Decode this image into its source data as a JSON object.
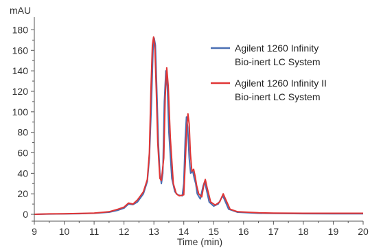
{
  "chart_data": {
    "type": "line",
    "xlabel": "Time (min)",
    "ylabel": "mAU",
    "xlim": [
      9,
      20
    ],
    "ylim": [
      -4,
      187
    ],
    "x_ticks": [
      9,
      10,
      11,
      12,
      13,
      14,
      15,
      16,
      17,
      18,
      19,
      20
    ],
    "y_ticks": [
      0,
      20,
      40,
      60,
      80,
      100,
      120,
      140,
      160,
      180
    ],
    "grid": false,
    "legend_position": "top-right",
    "series": [
      {
        "name": "Agilent 1260 Infinity\nBio-inert LC System",
        "color": "#4a6fb3",
        "points": [
          [
            9.0,
            0.0
          ],
          [
            9.5,
            0.3
          ],
          [
            10.0,
            0.4
          ],
          [
            10.5,
            0.6
          ],
          [
            11.0,
            1.0
          ],
          [
            11.5,
            2.0
          ],
          [
            11.8,
            4.0
          ],
          [
            12.0,
            6.0
          ],
          [
            12.15,
            10.0
          ],
          [
            12.3,
            9.5
          ],
          [
            12.45,
            12.0
          ],
          [
            12.55,
            16.0
          ],
          [
            12.65,
            20.0
          ],
          [
            12.78,
            32.0
          ],
          [
            12.85,
            55.0
          ],
          [
            12.92,
            110.0
          ],
          [
            12.97,
            160.0
          ],
          [
            13.01,
            172.0
          ],
          [
            13.05,
            165.0
          ],
          [
            13.1,
            120.0
          ],
          [
            13.15,
            70.0
          ],
          [
            13.2,
            40.0
          ],
          [
            13.25,
            30.0
          ],
          [
            13.3,
            40.0
          ],
          [
            13.35,
            110.0
          ],
          [
            13.4,
            140.0
          ],
          [
            13.45,
            125.0
          ],
          [
            13.5,
            80.0
          ],
          [
            13.6,
            35.0
          ],
          [
            13.7,
            22.0
          ],
          [
            13.8,
            19.0
          ],
          [
            13.95,
            18.0
          ],
          [
            14.0,
            30.0
          ],
          [
            14.05,
            75.0
          ],
          [
            14.09,
            95.0
          ],
          [
            14.13,
            85.0
          ],
          [
            14.18,
            55.0
          ],
          [
            14.23,
            40.0
          ],
          [
            14.3,
            42.0
          ],
          [
            14.35,
            35.0
          ],
          [
            14.4,
            30.0
          ],
          [
            14.45,
            20.0
          ],
          [
            14.55,
            15.0
          ],
          [
            14.65,
            28.0
          ],
          [
            14.7,
            32.0
          ],
          [
            14.75,
            25.0
          ],
          [
            14.85,
            12.0
          ],
          [
            15.0,
            8.0
          ],
          [
            15.15,
            10.0
          ],
          [
            15.3,
            18.0
          ],
          [
            15.35,
            15.0
          ],
          [
            15.5,
            5.0
          ],
          [
            15.8,
            2.0
          ],
          [
            16.5,
            1.0
          ],
          [
            17.0,
            0.8
          ],
          [
            18.0,
            0.6
          ],
          [
            19.0,
            0.5
          ],
          [
            20.0,
            0.5
          ]
        ]
      },
      {
        "name": "Agilent 1260 Infinity II\nBio-inert LC System",
        "color": "#e03535",
        "points": [
          [
            9.0,
            0.0
          ],
          [
            9.5,
            0.4
          ],
          [
            10.0,
            0.5
          ],
          [
            10.5,
            0.8
          ],
          [
            11.0,
            1.2
          ],
          [
            11.5,
            2.5
          ],
          [
            11.8,
            5.0
          ],
          [
            12.0,
            7.0
          ],
          [
            12.15,
            11.0
          ],
          [
            12.3,
            10.0
          ],
          [
            12.45,
            14.0
          ],
          [
            12.55,
            18.0
          ],
          [
            12.65,
            22.0
          ],
          [
            12.78,
            34.0
          ],
          [
            12.85,
            60.0
          ],
          [
            12.9,
            120.0
          ],
          [
            12.95,
            165.0
          ],
          [
            12.99,
            173.0
          ],
          [
            13.03,
            165.0
          ],
          [
            13.08,
            120.0
          ],
          [
            13.13,
            70.0
          ],
          [
            13.2,
            35.0
          ],
          [
            13.25,
            33.0
          ],
          [
            13.33,
            55.0
          ],
          [
            13.38,
            115.0
          ],
          [
            13.43,
            143.0
          ],
          [
            13.48,
            125.0
          ],
          [
            13.55,
            75.0
          ],
          [
            13.65,
            30.0
          ],
          [
            13.75,
            20.0
          ],
          [
            13.85,
            18.0
          ],
          [
            14.0,
            19.0
          ],
          [
            14.05,
            50.0
          ],
          [
            14.1,
            85.0
          ],
          [
            14.14,
            98.0
          ],
          [
            14.18,
            88.0
          ],
          [
            14.22,
            60.0
          ],
          [
            14.27,
            42.0
          ],
          [
            14.33,
            44.0
          ],
          [
            14.38,
            37.0
          ],
          [
            14.43,
            28.0
          ],
          [
            14.5,
            20.0
          ],
          [
            14.6,
            17.0
          ],
          [
            14.68,
            30.0
          ],
          [
            14.72,
            34.0
          ],
          [
            14.78,
            26.0
          ],
          [
            14.9,
            12.0
          ],
          [
            15.05,
            9.0
          ],
          [
            15.2,
            12.0
          ],
          [
            15.32,
            20.0
          ],
          [
            15.38,
            16.0
          ],
          [
            15.55,
            5.0
          ],
          [
            15.8,
            2.5
          ],
          [
            16.5,
            1.5
          ],
          [
            17.0,
            1.2
          ],
          [
            18.0,
            1.0
          ],
          [
            19.0,
            1.0
          ],
          [
            20.0,
            1.0
          ]
        ]
      }
    ]
  }
}
